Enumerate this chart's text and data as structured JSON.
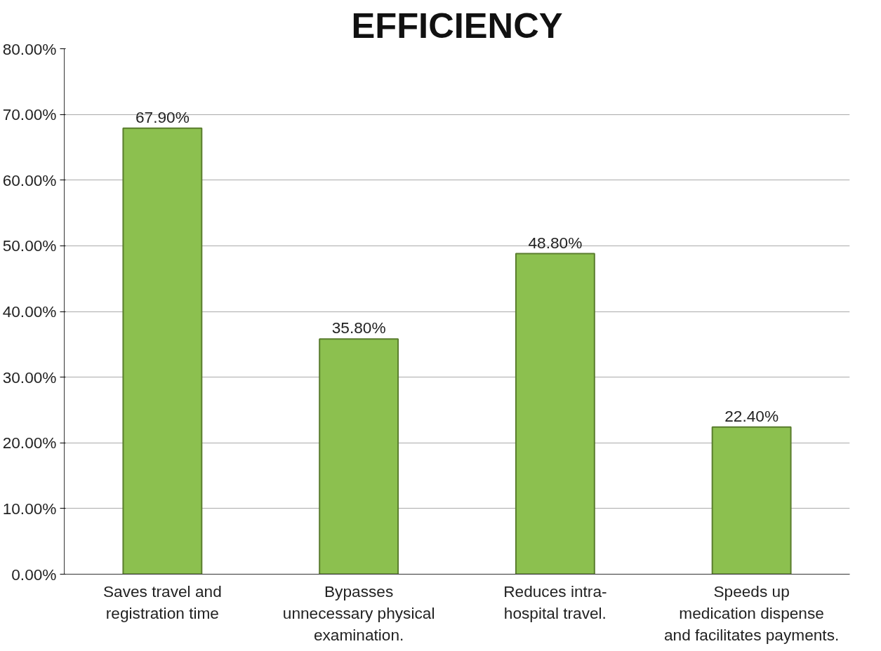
{
  "chart_data": {
    "type": "bar",
    "title": "EFFICIENCY",
    "categories": [
      "Saves travel and\nregistration time",
      "Bypasses\nunnecessary physical\nexamination.",
      "Reduces intra-\nhospital travel.",
      "Speeds up\nmedication dispense\nand facilitates payments."
    ],
    "values": [
      67.9,
      35.8,
      48.8,
      22.4
    ],
    "value_labels": [
      "67.90%",
      "35.80%",
      "48.80%",
      "22.40%"
    ],
    "color": "#8cc04f",
    "ylim": [
      0,
      80
    ],
    "yticks": [
      {
        "value": 0,
        "label": "0.00%"
      },
      {
        "value": 10,
        "label": "10.00%"
      },
      {
        "value": 20,
        "label": "20.00%"
      },
      {
        "value": 30,
        "label": "30.00%"
      },
      {
        "value": 40,
        "label": "40.00%"
      },
      {
        "value": 50,
        "label": "50.00%"
      },
      {
        "value": 60,
        "label": "60.00%"
      },
      {
        "value": 70,
        "label": "70.00%"
      },
      {
        "value": 80,
        "label": "80.00%"
      }
    ],
    "grid": "y"
  }
}
